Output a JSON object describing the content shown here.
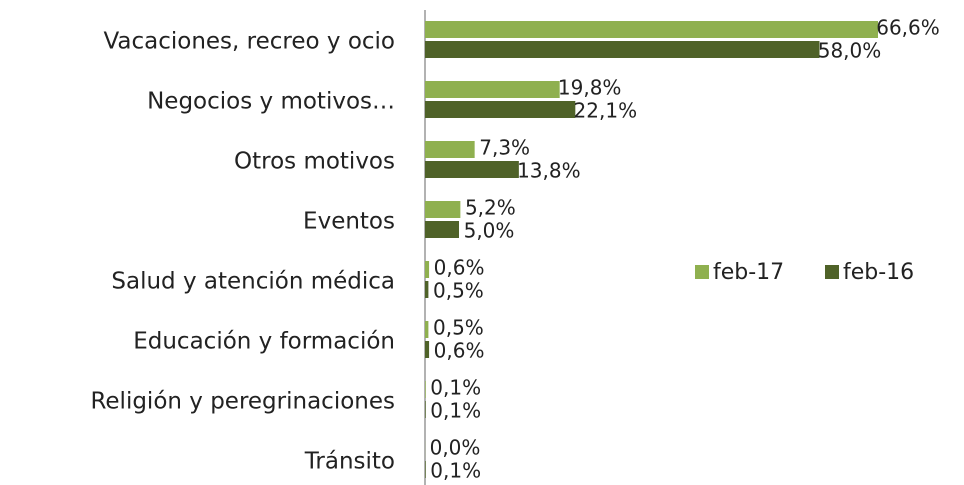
{
  "chart_data": {
    "type": "bar",
    "orientation": "horizontal",
    "categories": [
      "Vacaciones, recreo y ocio",
      "Negocios y motivos…",
      "Otros motivos",
      "Eventos",
      "Salud y atención médica",
      "Educación y formación",
      "Religión y peregrinaciones",
      "Tránsito"
    ],
    "series": [
      {
        "name": "feb-17",
        "color": "#8fb04f",
        "values": [
          66.6,
          19.8,
          7.3,
          5.2,
          0.6,
          0.5,
          0.1,
          0.0
        ],
        "value_labels": [
          "66,6%",
          "19,8%",
          "7,3%",
          "5,2%",
          "0,6%",
          "0,5%",
          "0,1%",
          "0,0%"
        ]
      },
      {
        "name": "feb-16",
        "color": "#4f6228",
        "values": [
          58.0,
          22.1,
          13.8,
          5.0,
          0.5,
          0.6,
          0.1,
          0.1
        ],
        "value_labels": [
          "58,0%",
          "22,1%",
          "13,8%",
          "5,0%",
          "0,5%",
          "0,6%",
          "0,1%",
          "0,1%"
        ]
      }
    ],
    "legend": "right"
  }
}
